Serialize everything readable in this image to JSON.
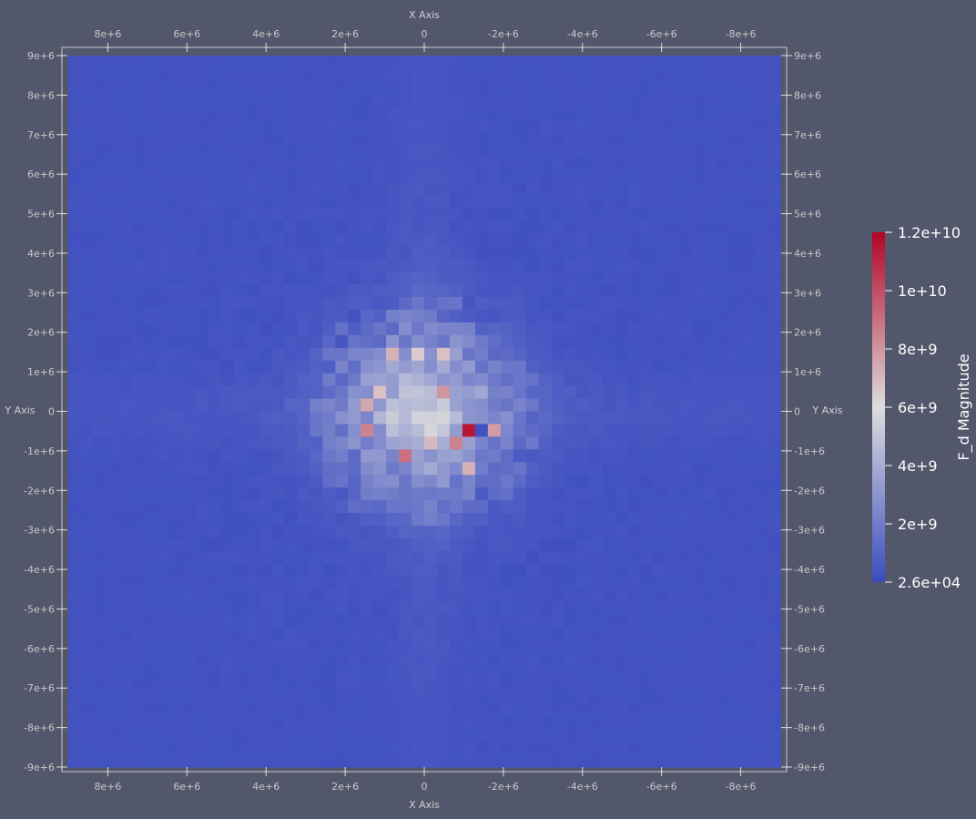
{
  "chart_data": {
    "type": "heatmap",
    "title": "",
    "xlabel": "X Axis",
    "ylabel": "Y Axis",
    "x_axis_reversed": true,
    "xlim": [
      9000000,
      -9000000
    ],
    "ylim": [
      -9000000,
      9000000
    ],
    "x_tick_labels": [
      "8e+6",
      "6e+6",
      "4e+6",
      "2e+6",
      "0",
      "-2e+6",
      "-4e+6",
      "-6e+6",
      "-8e+6"
    ],
    "x_tick_values": [
      8000000,
      6000000,
      4000000,
      2000000,
      0,
      -2000000,
      -4000000,
      -6000000,
      -8000000
    ],
    "y_tick_labels": [
      "9e+6",
      "8e+6",
      "7e+6",
      "6e+6",
      "5e+6",
      "4e+6",
      "3e+6",
      "2e+6",
      "1e+6",
      "0",
      "-1e+6",
      "-2e+6",
      "-3e+6",
      "-4e+6",
      "-5e+6",
      "-6e+6",
      "-7e+6",
      "-8e+6",
      "-9e+6"
    ],
    "y_tick_values": [
      9000000,
      8000000,
      7000000,
      6000000,
      5000000,
      4000000,
      3000000,
      2000000,
      1000000,
      0,
      -1000000,
      -2000000,
      -3000000,
      -4000000,
      -5000000,
      -6000000,
      -7000000,
      -8000000,
      -9000000
    ],
    "grid_cells": 56,
    "colorbar": {
      "title": "F_d Magnitude",
      "min": 26000,
      "max": 12000000000,
      "min_label": "2.6e+04",
      "max_label": "1.2e+10",
      "tick_values": [
        2000000000,
        4000000000,
        6000000000,
        8000000000,
        10000000000
      ],
      "tick_labels": [
        "2e+9",
        "4e+9",
        "6e+9",
        "8e+9",
        "1e+10"
      ],
      "colormap": "cool-to-warm",
      "colors": [
        "#3b4cc0",
        "#dddddd",
        "#b40426"
      ]
    },
    "distribution": "radially concentrated about the origin; background ≈ 3e+8, central disk ≈ 3e+9–5e+9 with scattered peaks",
    "peaks": [
      {
        "x": -1000000,
        "y": -400000,
        "value": 11500000000
      },
      {
        "x": 1300000,
        "y": -400000,
        "value": 8500000000
      },
      {
        "x": 400000,
        "y": -1000000,
        "value": 9000000000
      },
      {
        "x": -700000,
        "y": -700000,
        "value": 8500000000
      },
      {
        "x": -400000,
        "y": 400000,
        "value": 8000000000
      },
      {
        "x": -1900000,
        "y": -400000,
        "value": 7800000000
      },
      {
        "x": 1300000,
        "y": 100000,
        "value": 7500000000
      },
      {
        "x": 700000,
        "y": 1300000,
        "value": 7200000000
      },
      {
        "x": -1000000,
        "y": -1600000,
        "value": 7200000000
      },
      {
        "x": -100000,
        "y": -700000,
        "value": 7000000000
      },
      {
        "x": -400000,
        "y": 1300000,
        "value": 6800000000
      },
      {
        "x": 1000000,
        "y": 400000,
        "value": 6800000000
      },
      {
        "x": 100000,
        "y": 1300000,
        "value": 6500000000
      }
    ],
    "troughs": [
      {
        "x": -1600000,
        "y": -400000,
        "value": 200000000
      }
    ]
  }
}
